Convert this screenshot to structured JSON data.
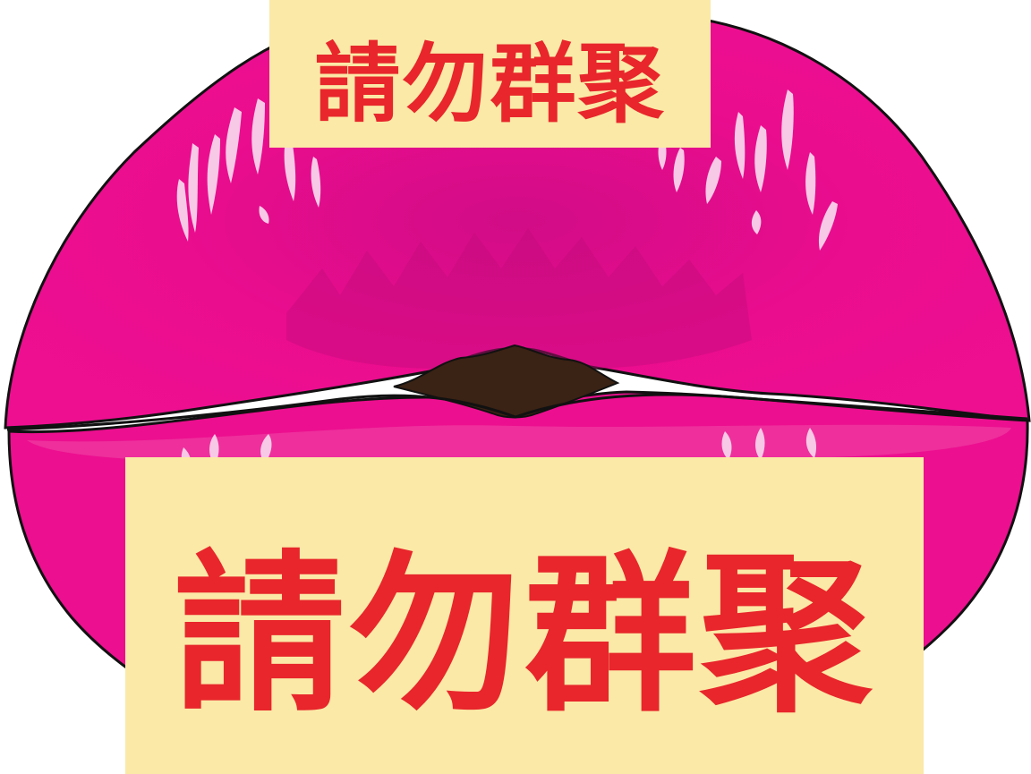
{
  "signs": {
    "top_text": "請勿群聚",
    "bottom_text": "請勿群聚"
  },
  "colors": {
    "lip": "#ec0f8f",
    "lip_highlight": "#f7c9e6",
    "mouth": "#3a2214",
    "sign_background": "#fbe9a7",
    "sign_text": "#e8262b",
    "outline": "#111111"
  }
}
